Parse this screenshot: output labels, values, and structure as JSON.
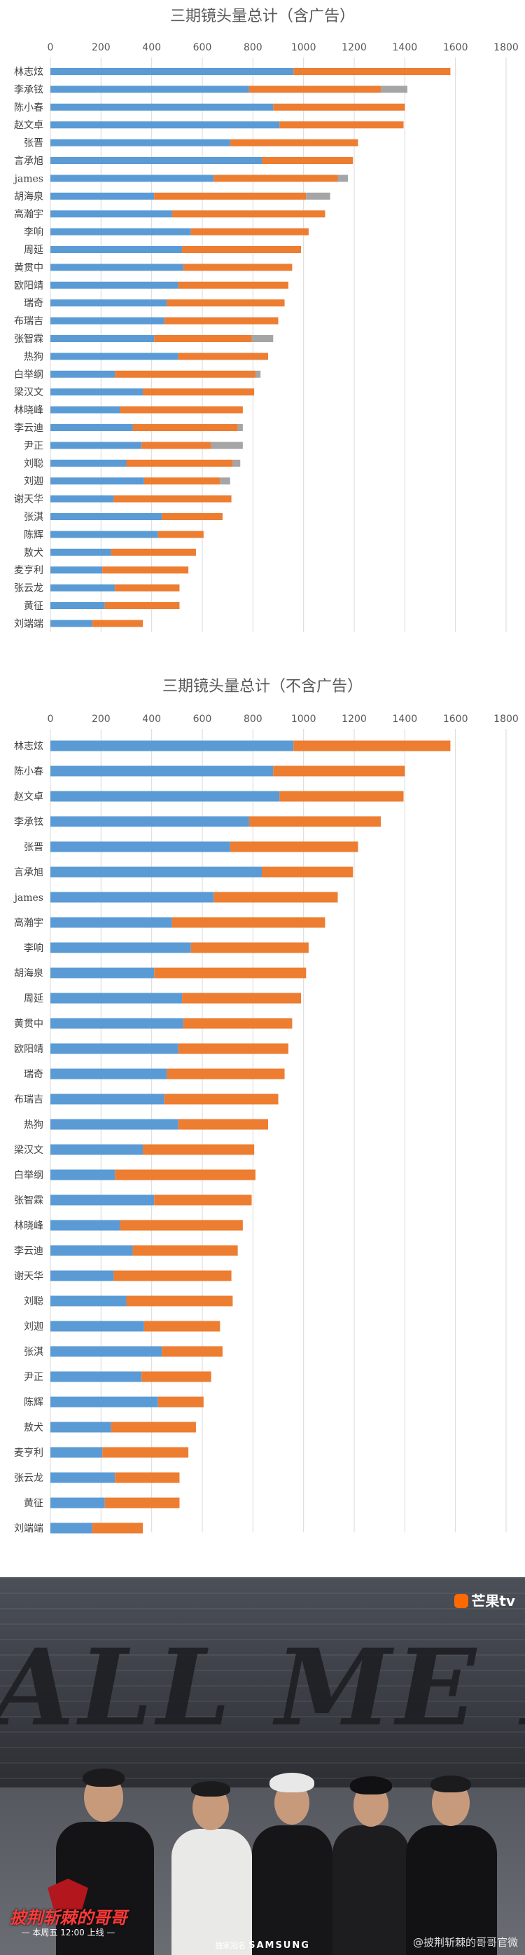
{
  "chart_data": [
    {
      "type": "bar",
      "orientation": "horizontal",
      "stacked": true,
      "title": "三期镜头量总计（含广告）",
      "xlim": [
        0,
        1800
      ],
      "xticks": [
        0,
        200,
        400,
        600,
        800,
        1000,
        1200,
        1400,
        1600,
        1800
      ],
      "grid": true,
      "categories": [
        "林志炫",
        "李承铉",
        "陈小春",
        "赵文卓",
        "张晋",
        "言承旭",
        "james",
        "胡海泉",
        "高瀚宇",
        "李响",
        "周延",
        "黄贯中",
        "欧阳靖",
        "瑞奇",
        "布瑞吉",
        "张智霖",
        "热狗",
        "白举纲",
        "梁汉文",
        "林晓峰",
        "李云迪",
        "尹正",
        "刘聪",
        "刘迦",
        "谢天华",
        "张淇",
        "陈辉",
        "敖犬",
        "麦亨利",
        "张云龙",
        "黄征",
        "刘端端"
      ],
      "series": [
        {
          "color": "#5b9bd5",
          "values": [
            960,
            785,
            880,
            905,
            710,
            835,
            645,
            410,
            480,
            555,
            520,
            525,
            505,
            460,
            450,
            410,
            505,
            255,
            365,
            275,
            325,
            360,
            300,
            370,
            250,
            440,
            425,
            240,
            205,
            255,
            215,
            165
          ]
        },
        {
          "color": "#ed7d31",
          "values": [
            620,
            520,
            520,
            490,
            505,
            360,
            490,
            600,
            605,
            465,
            470,
            430,
            435,
            465,
            450,
            385,
            355,
            555,
            440,
            485,
            415,
            275,
            420,
            300,
            465,
            240,
            180,
            335,
            340,
            255,
            295,
            200
          ]
        },
        {
          "color": "#a5a5a5",
          "values": [
            0,
            105,
            0,
            0,
            0,
            0,
            40,
            95,
            0,
            0,
            0,
            0,
            0,
            0,
            0,
            85,
            0,
            20,
            0,
            0,
            20,
            125,
            30,
            40,
            0,
            0,
            0,
            0,
            0,
            0,
            0,
            0
          ]
        }
      ]
    },
    {
      "type": "bar",
      "orientation": "horizontal",
      "stacked": true,
      "title": "三期镜头量总计（不含广告）",
      "xlim": [
        0,
        1800
      ],
      "xticks": [
        0,
        200,
        400,
        600,
        800,
        1000,
        1200,
        1400,
        1600,
        1800
      ],
      "grid": true,
      "categories": [
        "林志炫",
        "陈小春",
        "赵文卓",
        "李承铉",
        "张晋",
        "言承旭",
        "james",
        "高瀚宇",
        "李响",
        "胡海泉",
        "周延",
        "黄贯中",
        "欧阳靖",
        "瑞奇",
        "布瑞吉",
        "热狗",
        "梁汉文",
        "白举纲",
        "张智霖",
        "林晓峰",
        "李云迪",
        "谢天华",
        "刘聪",
        "刘迦",
        "张淇",
        "尹正",
        "陈辉",
        "敖犬",
        "麦亨利",
        "张云龙",
        "黄征",
        "刘端端"
      ],
      "series": [
        {
          "color": "#5b9bd5",
          "values": [
            960,
            880,
            905,
            785,
            710,
            835,
            645,
            480,
            555,
            410,
            520,
            525,
            505,
            460,
            450,
            505,
            365,
            255,
            410,
            275,
            325,
            250,
            300,
            370,
            440,
            360,
            425,
            240,
            205,
            255,
            215,
            165
          ]
        },
        {
          "color": "#ed7d31",
          "values": [
            620,
            520,
            490,
            520,
            505,
            360,
            490,
            605,
            465,
            600,
            470,
            430,
            435,
            465,
            450,
            355,
            440,
            555,
            385,
            485,
            415,
            465,
            420,
            300,
            240,
            275,
            180,
            335,
            340,
            255,
            295,
            200
          ]
        }
      ]
    }
  ],
  "photo": {
    "wall_text": "ALL ME BY",
    "platform_logo": "芒果tv",
    "show_title": "披荆斩棘的哥哥",
    "schedule": "— 本周五 12:00 上线 —",
    "sponsor_prefix": "独家冠名",
    "sponsor_brand": "SAMSUNG",
    "watermark": "@披荆斩棘的哥哥官微"
  }
}
